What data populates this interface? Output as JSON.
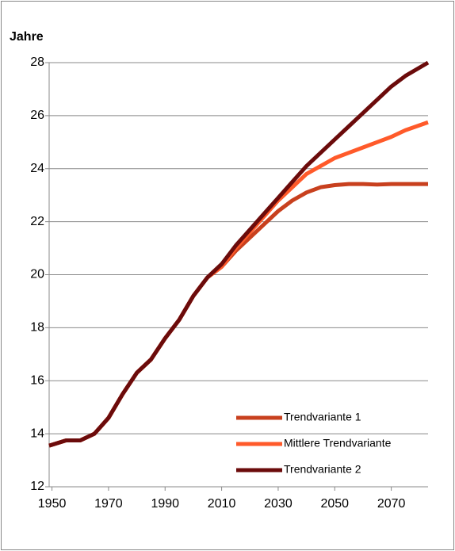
{
  "chart_data": {
    "type": "line",
    "y_label": "Jahre",
    "x": [
      1949,
      1955,
      1960,
      1965,
      1970,
      1975,
      1980,
      1985,
      1990,
      1995,
      2000,
      2005,
      2010,
      2015,
      2020,
      2025,
      2030,
      2035,
      2040,
      2045,
      2050,
      2055,
      2060,
      2065,
      2070,
      2075,
      2083
    ],
    "series": [
      {
        "name": "Trendvariante 1",
        "color": "#c8401e",
        "values": [
          13.55,
          13.75,
          13.75,
          14.0,
          14.6,
          15.5,
          16.3,
          16.8,
          17.6,
          18.3,
          19.2,
          19.9,
          20.3,
          20.9,
          21.4,
          21.9,
          22.4,
          22.8,
          23.1,
          23.3,
          23.38,
          23.42,
          23.42,
          23.4,
          23.42,
          23.42,
          23.42
        ]
      },
      {
        "name": "Mittlere Trendvariante",
        "color": "#ff5a2a",
        "values": [
          13.55,
          13.75,
          13.75,
          14.0,
          14.6,
          15.5,
          16.3,
          16.8,
          17.6,
          18.3,
          19.2,
          19.9,
          20.3,
          21.0,
          21.6,
          22.2,
          22.8,
          23.3,
          23.8,
          24.1,
          24.4,
          24.6,
          24.8,
          25.0,
          25.2,
          25.45,
          25.75
        ]
      },
      {
        "name": "Trendvariante 2",
        "color": "#6b0b0b",
        "values": [
          13.55,
          13.75,
          13.75,
          14.0,
          14.6,
          15.5,
          16.3,
          16.8,
          17.6,
          18.3,
          19.2,
          19.9,
          20.4,
          21.1,
          21.7,
          22.3,
          22.9,
          23.5,
          24.1,
          24.6,
          25.1,
          25.6,
          26.1,
          26.6,
          27.1,
          27.5,
          28.0
        ]
      }
    ],
    "xlim": [
      1949,
      2083
    ],
    "xticks": [
      1950,
      1970,
      1990,
      2010,
      2030,
      2050,
      2070
    ],
    "ylim": [
      12,
      28
    ],
    "yticks": [
      12,
      14,
      16,
      18,
      20,
      22,
      24,
      26,
      28
    ],
    "grid": true,
    "legend": "lower right"
  }
}
